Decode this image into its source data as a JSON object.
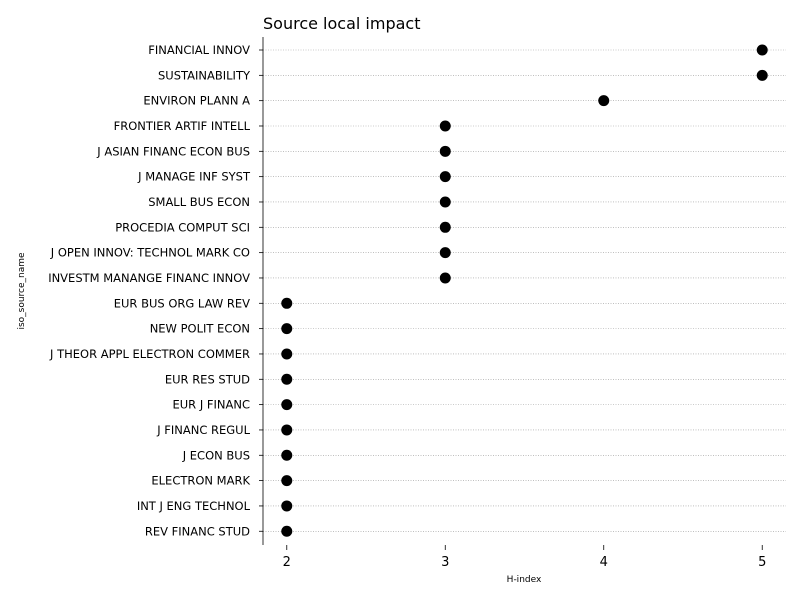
{
  "chart_data": {
    "type": "scatter",
    "title": "Source local impact",
    "xlabel": "H-index",
    "ylabel": "iso_source_name",
    "xlim": [
      1.85,
      5.15
    ],
    "xticks": [
      2,
      3,
      4,
      5
    ],
    "grid": "horizontal-dotted",
    "marker_color": "#000000",
    "categories": [
      "FINANCIAL INNOV",
      "SUSTAINABILITY",
      "ENVIRON PLANN A",
      "FRONTIER ARTIF INTELL",
      "J ASIAN FINANC ECON BUS",
      "J MANAGE INF SYST",
      "SMALL BUS ECON",
      "PROCEDIA COMPUT SCI",
      "J OPEN INNOV: TECHNOL MARK CO",
      "INVESTM MANANGE FINANC INNOV",
      "EUR BUS ORG LAW REV",
      "NEW POLIT ECON",
      "J THEOR APPL ELECTRON COMMER",
      "EUR RES STUD",
      "EUR J FINANC",
      "J FINANC REGUL",
      "J ECON BUS",
      "ELECTRON MARK",
      "INT J ENG TECHNOL",
      "REV FINANC STUD"
    ],
    "values": [
      5,
      5,
      4,
      3,
      3,
      3,
      3,
      3,
      3,
      3,
      2,
      2,
      2,
      2,
      2,
      2,
      2,
      2,
      2,
      2
    ]
  }
}
